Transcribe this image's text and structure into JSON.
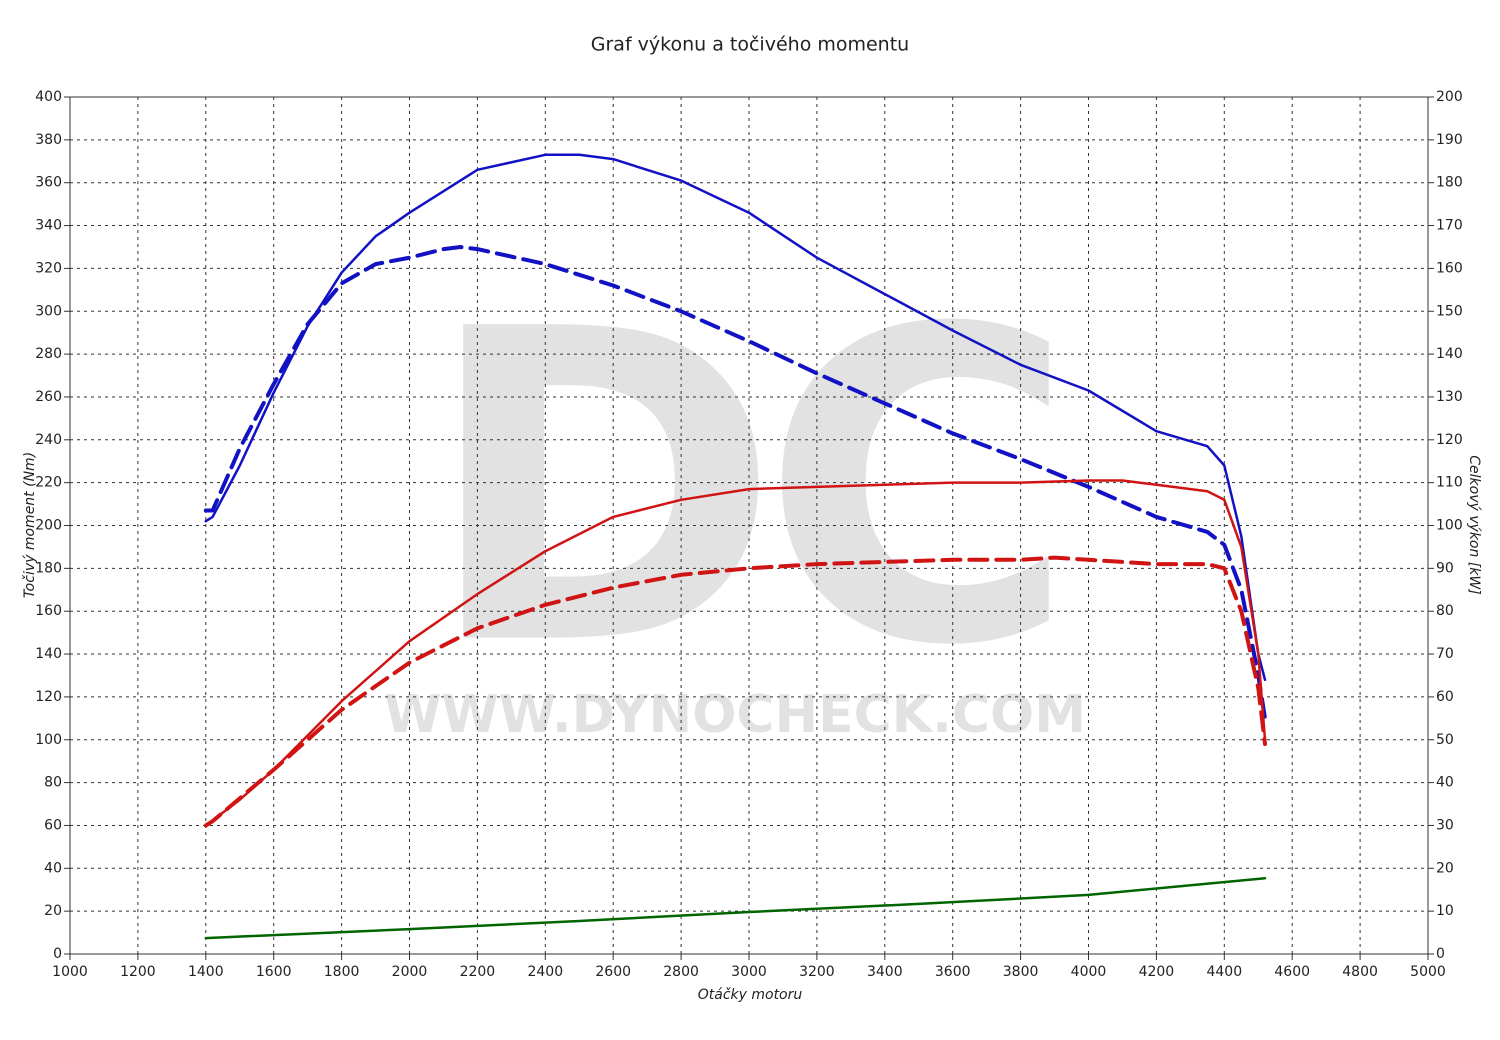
{
  "chart_data": {
    "type": "line",
    "title": "Graf výkonu a točivého momentu",
    "xlabel": "Otáčky motoru",
    "ylabel": "Točivý moment (Nm)",
    "y2label": "Celkový výkon [kW]",
    "watermark_logo": "DC",
    "watermark_url": "WWW.DYNOCHECK.COM",
    "grid": true,
    "xlim": [
      1000,
      5000
    ],
    "xticks": [
      1000,
      1200,
      1400,
      1600,
      1800,
      2000,
      2200,
      2400,
      2600,
      2800,
      3000,
      3200,
      3400,
      3600,
      3800,
      4000,
      4200,
      4400,
      4600,
      4800,
      5000
    ],
    "ylim": [
      0,
      400
    ],
    "yticks": [
      0,
      20,
      40,
      60,
      80,
      100,
      120,
      140,
      160,
      180,
      200,
      220,
      240,
      260,
      280,
      300,
      320,
      340,
      360,
      380,
      400
    ],
    "y2lim": [
      0,
      200
    ],
    "y2ticks": [
      0,
      10,
      20,
      30,
      40,
      50,
      60,
      70,
      80,
      90,
      100,
      110,
      120,
      130,
      140,
      150,
      160,
      170,
      180,
      190,
      200
    ],
    "series": [
      {
        "color": "#1212c4",
        "dashed": false,
        "axis": "y",
        "x": [
          1400,
          1420,
          1500,
          1600,
          1700,
          1800,
          1900,
          2000,
          2200,
          2400,
          2500,
          2600,
          2800,
          3000,
          3200,
          3400,
          3600,
          3800,
          4000,
          4200,
          4350,
          4400,
          4450,
          4500,
          4520
        ],
        "values": [
          202,
          204,
          228,
          262,
          293,
          318,
          335,
          346,
          366,
          373,
          373,
          371,
          361,
          346,
          325,
          308,
          291,
          275,
          263,
          244,
          237,
          228,
          195,
          140,
          128
        ]
      },
      {
        "color": "#1212c4",
        "dashed": true,
        "axis": "y",
        "x": [
          1400,
          1420,
          1500,
          1600,
          1700,
          1800,
          1900,
          2000,
          2100,
          2150,
          2200,
          2400,
          2600,
          2800,
          3000,
          3200,
          3400,
          3600,
          3800,
          4000,
          4200,
          4350,
          4400,
          4450,
          4500,
          4520
        ],
        "values": [
          207,
          207,
          236,
          266,
          294,
          313,
          322,
          325,
          329,
          330,
          329,
          322,
          312,
          300,
          286,
          271,
          257,
          243,
          231,
          218,
          204,
          197,
          191,
          170,
          130,
          110
        ]
      },
      {
        "color": "#d01414",
        "dashed": false,
        "axis": "y2",
        "x": [
          1400,
          1500,
          1600,
          1800,
          2000,
          2200,
          2400,
          2600,
          2800,
          3000,
          3200,
          3400,
          3600,
          3800,
          4000,
          4100,
          4200,
          4350,
          4400,
          4450,
          4500,
          4520
        ],
        "values": [
          30,
          36,
          43,
          59,
          73,
          84,
          94,
          102,
          106,
          108.5,
          109,
          109.5,
          110,
          110,
          110.5,
          110.5,
          109.5,
          108,
          106,
          95,
          70,
          50
        ]
      },
      {
        "color": "#d01414",
        "dashed": true,
        "axis": "y2",
        "x": [
          1400,
          1420,
          1600,
          1800,
          2000,
          2200,
          2400,
          2600,
          2800,
          3000,
          3200,
          3400,
          3600,
          3800,
          3900,
          4000,
          4200,
          4350,
          4400,
          4450,
          4500,
          4520
        ],
        "values": [
          30,
          31,
          43,
          57,
          68,
          76,
          81.5,
          85.5,
          88.5,
          90,
          91,
          91.5,
          92,
          92,
          92.5,
          92,
          91,
          91,
          90,
          80,
          62,
          49
        ]
      },
      {
        "color": "#006400",
        "dashed": false,
        "axis": "y2",
        "x": [
          1400,
          2000,
          2500,
          3000,
          3500,
          4000,
          4520
        ],
        "values": [
          3.7,
          5.8,
          7.7,
          9.8,
          11.7,
          13.8,
          17.7
        ]
      }
    ]
  }
}
